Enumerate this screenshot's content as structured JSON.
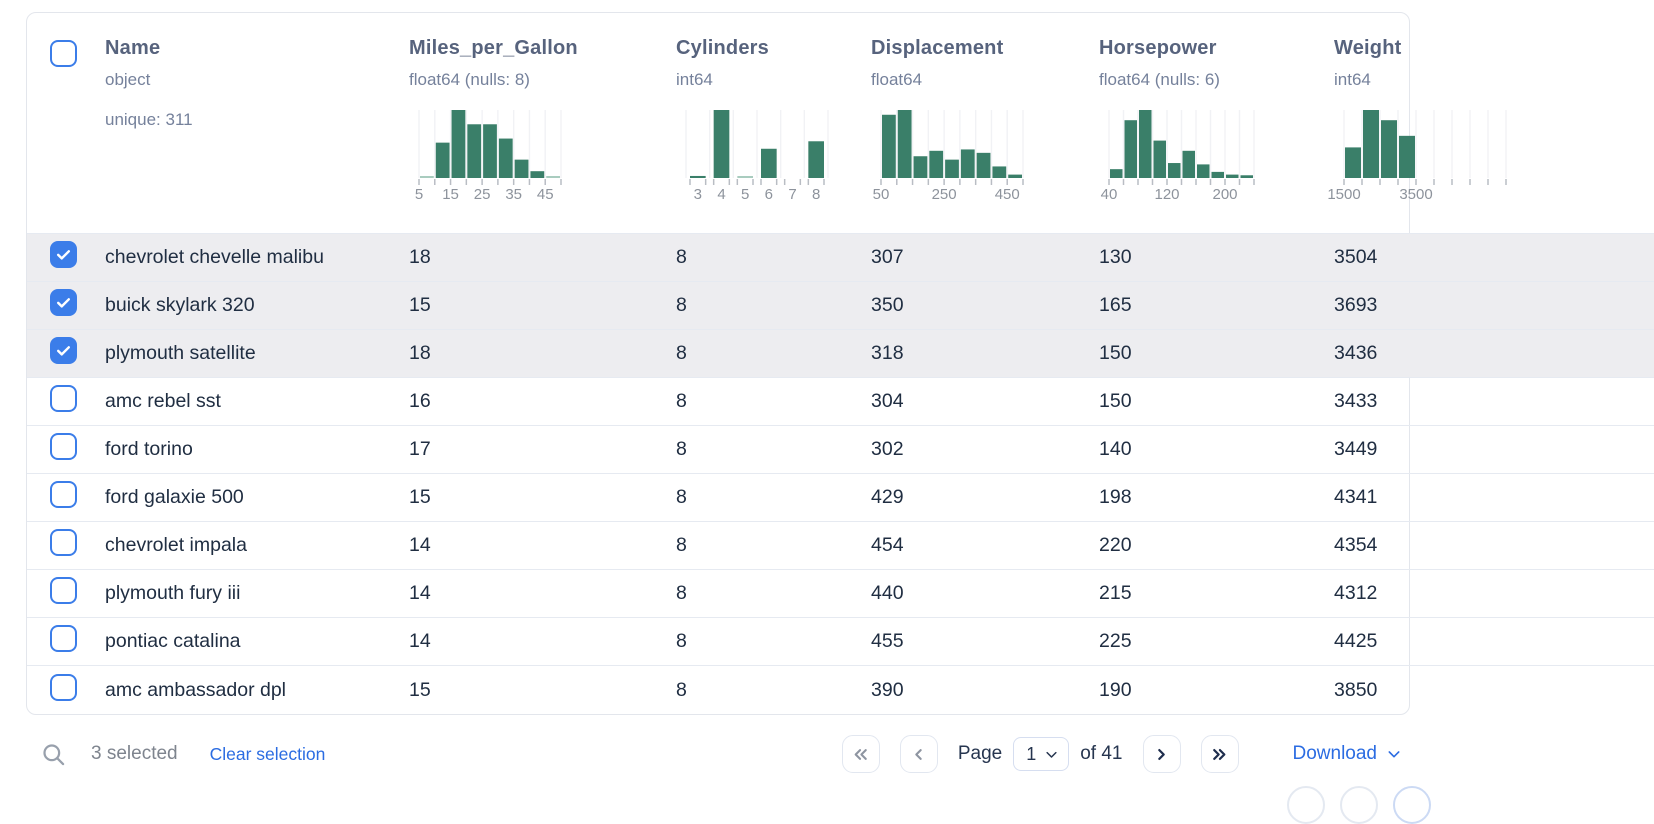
{
  "colors": {
    "accent_blue": "#3b7de9",
    "link_blue": "#2b6ce2",
    "hist_green": "#3a7f69",
    "hist_green_faint": "#a9ccbf",
    "selected_row_bg": "#ededf0"
  },
  "table": {
    "select_all_checked": false,
    "columns": [
      {
        "id": "name",
        "title": "Name",
        "dtype": "object",
        "extra": "unique: 311"
      },
      {
        "id": "mpg",
        "title": "Miles_per_Gallon",
        "dtype": "float64 (nulls: 8)",
        "hist": {
          "mode": "edges",
          "width": 142,
          "heights": [
            0.015,
            0.52,
            1,
            0.79,
            0.79,
            0.58,
            0.27,
            0.1,
            0.015
          ],
          "labels": [
            {
              "e": 0,
              "t": "5"
            },
            {
              "e": 2,
              "t": "15"
            },
            {
              "e": 4,
              "t": "25"
            },
            {
              "e": 6,
              "t": "35"
            },
            {
              "e": 8,
              "t": "45"
            }
          ]
        }
      },
      {
        "id": "cylinders",
        "title": "Cylinders",
        "dtype": "int64",
        "hist": {
          "mode": "centers",
          "width": 142,
          "heights": [
            0.03,
            1,
            0.015,
            0.43,
            0,
            0.54
          ],
          "labels": [
            {
              "e": 0,
              "t": "3"
            },
            {
              "e": 1,
              "t": "4"
            },
            {
              "e": 2,
              "t": "5"
            },
            {
              "e": 3,
              "t": "6"
            },
            {
              "e": 4,
              "t": "7"
            },
            {
              "e": 5,
              "t": "8"
            }
          ]
        }
      },
      {
        "id": "displacement",
        "title": "Displacement",
        "dtype": "float64",
        "hist": {
          "mode": "edges",
          "width": 142,
          "heights": [
            0.93,
            1,
            0.32,
            0.4,
            0.27,
            0.42,
            0.37,
            0.17,
            0.05
          ],
          "labels": [
            {
              "e": 0,
              "t": "50"
            },
            {
              "e": 4,
              "t": "250"
            },
            {
              "e": 8,
              "t": "450"
            }
          ]
        }
      },
      {
        "id": "horsepower",
        "title": "Horsepower",
        "dtype": "float64 (nulls: 6)",
        "hist": {
          "mode": "edges",
          "width": 145,
          "heights": [
            0.13,
            0.85,
            1,
            0.55,
            0.22,
            0.4,
            0.2,
            0.09,
            0.05,
            0.04
          ],
          "labels": [
            {
              "e": 0,
              "t": "40"
            },
            {
              "e": 4,
              "t": "120"
            },
            {
              "e": 8,
              "t": "200"
            }
          ]
        }
      },
      {
        "id": "weight",
        "title": "Weight",
        "dtype": "int64",
        "hist": {
          "mode": "edges",
          "width": 162,
          "bins": 9,
          "heights": [
            0.45,
            1,
            0.85,
            0.62
          ],
          "labels": [
            {
              "e": 0,
              "t": "1500"
            },
            {
              "e": 4,
              "t": "3500"
            }
          ]
        }
      }
    ],
    "rows": [
      {
        "checked": true,
        "cells": [
          "chevrolet chevelle malibu",
          "18",
          "8",
          "307",
          "130",
          "3504"
        ]
      },
      {
        "checked": true,
        "cells": [
          "buick skylark 320",
          "15",
          "8",
          "350",
          "165",
          "3693"
        ]
      },
      {
        "checked": true,
        "cells": [
          "plymouth satellite",
          "18",
          "8",
          "318",
          "150",
          "3436"
        ]
      },
      {
        "checked": false,
        "cells": [
          "amc rebel sst",
          "16",
          "8",
          "304",
          "150",
          "3433"
        ]
      },
      {
        "checked": false,
        "cells": [
          "ford torino",
          "17",
          "8",
          "302",
          "140",
          "3449"
        ]
      },
      {
        "checked": false,
        "cells": [
          "ford galaxie 500",
          "15",
          "8",
          "429",
          "198",
          "4341"
        ]
      },
      {
        "checked": false,
        "cells": [
          "chevrolet impala",
          "14",
          "8",
          "454",
          "220",
          "4354"
        ]
      },
      {
        "checked": false,
        "cells": [
          "plymouth fury iii",
          "14",
          "8",
          "440",
          "215",
          "4312"
        ]
      },
      {
        "checked": false,
        "cells": [
          "pontiac catalina",
          "14",
          "8",
          "455",
          "225",
          "4425"
        ]
      },
      {
        "checked": false,
        "cells": [
          "amc ambassador dpl",
          "15",
          "8",
          "390",
          "190",
          "3850"
        ]
      }
    ]
  },
  "footer": {
    "selected_text": "3 selected",
    "clear_label": "Clear selection",
    "page_label": "Page",
    "page_value": "1",
    "page_total": "of 41",
    "download_label": "Download"
  }
}
